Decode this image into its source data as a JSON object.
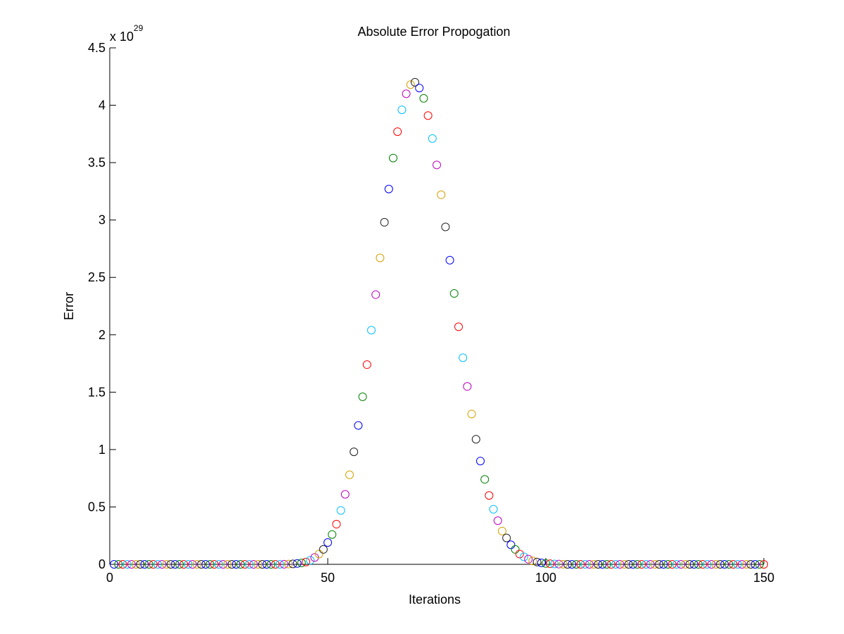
{
  "chart_data": {
    "type": "scatter",
    "title": "Absolute Error Propogation",
    "xlabel": "Iterations",
    "ylabel": "Error",
    "y_exponent_base": "x 10",
    "y_exponent_power": "29",
    "xlim": [
      0,
      150
    ],
    "ylim": [
      0,
      4.5
    ],
    "x_ticks": [
      0,
      50,
      100,
      150
    ],
    "x_tick_labels": [
      "0",
      "50",
      "100",
      "150"
    ],
    "y_ticks": [
      0,
      0.5,
      1,
      1.5,
      2,
      2.5,
      3,
      3.5,
      4,
      4.5
    ],
    "y_tick_labels": [
      "0",
      "0.5",
      "1",
      "1.5",
      "2",
      "2.5",
      "3",
      "3.5",
      "4",
      "4.5"
    ],
    "grid": false,
    "marker": "open-circle",
    "color_cycle": [
      "#0000ff",
      "#008000",
      "#ff0000",
      "#00bfff",
      "#bf00bf",
      "#d4a000",
      "#202020"
    ],
    "x": [
      1,
      2,
      3,
      4,
      5,
      6,
      7,
      8,
      9,
      10,
      11,
      12,
      13,
      14,
      15,
      16,
      17,
      18,
      19,
      20,
      21,
      22,
      23,
      24,
      25,
      26,
      27,
      28,
      29,
      30,
      31,
      32,
      33,
      34,
      35,
      36,
      37,
      38,
      39,
      40,
      41,
      42,
      43,
      44,
      45,
      46,
      47,
      48,
      49,
      50,
      51,
      52,
      53,
      54,
      55,
      56,
      57,
      58,
      59,
      60,
      61,
      62,
      63,
      64,
      65,
      66,
      67,
      68,
      69,
      70,
      71,
      72,
      73,
      74,
      75,
      76,
      77,
      78,
      79,
      80,
      81,
      82,
      83,
      84,
      85,
      86,
      87,
      88,
      89,
      90,
      91,
      92,
      93,
      94,
      95,
      96,
      97,
      98,
      99,
      100,
      101,
      102,
      103,
      104,
      105,
      106,
      107,
      108,
      109,
      110,
      111,
      112,
      113,
      114,
      115,
      116,
      117,
      118,
      119,
      120,
      121,
      122,
      123,
      124,
      125,
      126,
      127,
      128,
      129,
      130,
      131,
      132,
      133,
      134,
      135,
      136,
      137,
      138,
      139,
      140,
      141,
      142,
      143,
      144,
      145,
      146,
      147,
      148,
      149,
      150
    ],
    "y": [
      0,
      0,
      0,
      0,
      0,
      0,
      0,
      0,
      0,
      0,
      0,
      0,
      0,
      0,
      0,
      0,
      0,
      0,
      0,
      0,
      0,
      0,
      0,
      0,
      0,
      0,
      0,
      0,
      0,
      0,
      0,
      0,
      0,
      0,
      0,
      0,
      0,
      0,
      0,
      0.001,
      0.002,
      0.004,
      0.008,
      0.012,
      0.02,
      0.035,
      0.06,
      0.09,
      0.13,
      0.19,
      0.26,
      0.35,
      0.47,
      0.61,
      0.78,
      0.98,
      1.21,
      1.46,
      1.74,
      2.04,
      2.35,
      2.67,
      2.98,
      3.27,
      3.54,
      3.77,
      3.96,
      4.1,
      4.18,
      4.2,
      4.15,
      4.06,
      3.91,
      3.71,
      3.48,
      3.22,
      2.94,
      2.65,
      2.36,
      2.07,
      1.8,
      1.55,
      1.31,
      1.09,
      0.9,
      0.74,
      0.6,
      0.48,
      0.38,
      0.29,
      0.23,
      0.17,
      0.13,
      0.09,
      0.065,
      0.045,
      0.03,
      0.02,
      0.013,
      0.008,
      0.005,
      0.003,
      0.002,
      0.001,
      0,
      0,
      0,
      0,
      0,
      0,
      0,
      0,
      0,
      0,
      0,
      0,
      0,
      0,
      0,
      0,
      0,
      0,
      0,
      0,
      0,
      0,
      0,
      0,
      0,
      0,
      0,
      0,
      0,
      0,
      0,
      0,
      0,
      0,
      0,
      0,
      0,
      0,
      0,
      0,
      0,
      0,
      0,
      0,
      0,
      0
    ]
  }
}
